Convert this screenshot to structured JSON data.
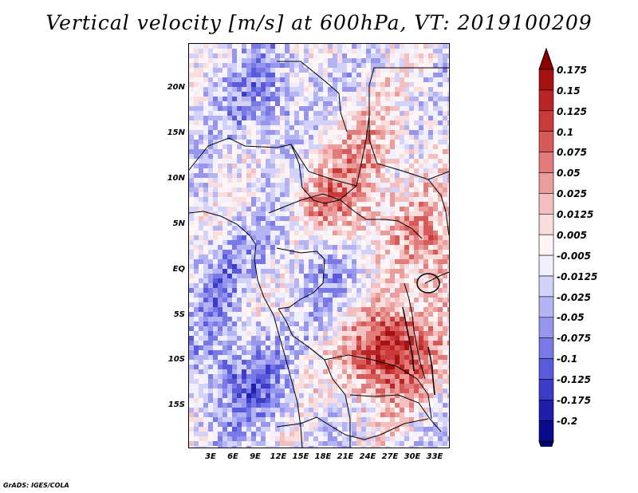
{
  "title": "Vertical velocity [m/s] at 600hPa, VT: 2019100209",
  "credit": "GrADS: IGES/COLA",
  "lat_labels": [
    "20N",
    "15N",
    "10N",
    "5N",
    "EQ",
    "5S",
    "10S",
    "15S"
  ],
  "lon_labels": [
    "3E",
    "6E",
    "9E",
    "12E",
    "15E",
    "18E",
    "21E",
    "24E",
    "27E",
    "30E",
    "33E"
  ],
  "colorbar": {
    "labels": [
      "0.175",
      "0.15",
      "0.125",
      "0.1",
      "0.075",
      "0.05",
      "0.025",
      "0.0125",
      "0.005",
      "-0.005",
      "-0.0125",
      "-0.025",
      "-0.05",
      "-0.075",
      "-0.1",
      "-0.125",
      "-0.175",
      "-0.2"
    ],
    "colors": [
      "#8b0000",
      "#a51214",
      "#b92527",
      "#cb3a3a",
      "#d85a58",
      "#e27c7a",
      "#eb9d9b",
      "#f3c0bf",
      "#f9dedd",
      "#fff5f5",
      "#f0f0ff",
      "#d2d2fa",
      "#b4b4f5",
      "#9696ef",
      "#7878e6",
      "#5a5adc",
      "#3c3cc8",
      "#1e1eaa",
      "#0a0a8c",
      "#00006e"
    ]
  }
}
